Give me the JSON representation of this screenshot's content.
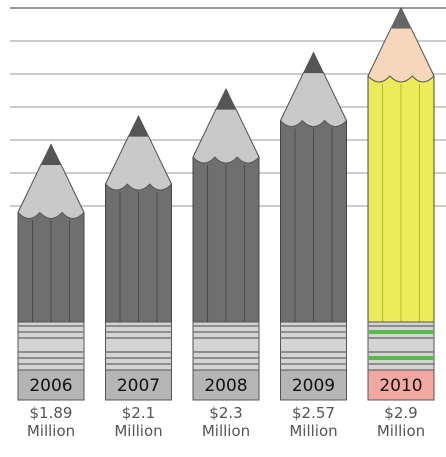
{
  "chart_data": {
    "type": "bar",
    "categories": [
      "2006",
      "2007",
      "2008",
      "2009",
      "2010"
    ],
    "values": [
      1.89,
      2.1,
      2.3,
      2.57,
      2.9
    ],
    "value_labels": [
      "$1.89 Million",
      "$2.1 Million",
      "$2.3 Million",
      "$2.57 Million",
      "$2.9 Million"
    ],
    "colors": [
      "#6f6f6f",
      "#6f6f6f",
      "#6f6f6f",
      "#6f6f6f",
      "#ecec5a"
    ],
    "ylim": [
      0,
      2.9
    ]
  }
}
